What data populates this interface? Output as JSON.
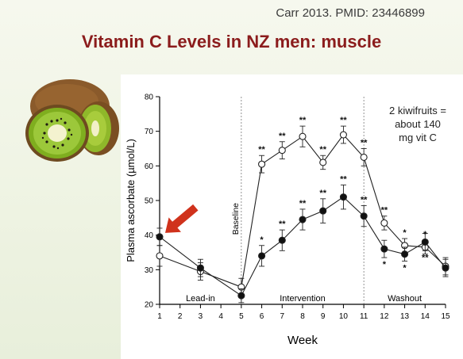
{
  "slide": {
    "citation": "Carr 2013. PMID: 23446899",
    "title": "Vitamin C Levels in NZ men: muscle",
    "annotation_lines": [
      "2 kiwifruits =",
      "about 140",
      "mg vit C"
    ],
    "image_description_icon": "kiwi-fruit-icon",
    "arrow_color": "#d0321c",
    "title_color": "#8b1c1c"
  },
  "chart_data": {
    "type": "line",
    "xlabel": "Week",
    "ylabel": "Plasma ascorbate (µmol/L)",
    "x": [
      1,
      2,
      3,
      4,
      5,
      6,
      7,
      8,
      9,
      10,
      11,
      12,
      13,
      14,
      15
    ],
    "xlim": [
      1,
      15
    ],
    "ylim": [
      20,
      80
    ],
    "yticks": [
      20,
      30,
      40,
      50,
      60,
      70,
      80
    ],
    "grid": false,
    "series": [
      {
        "marker": "open-circle",
        "points": [
          {
            "x": 1,
            "y": 34,
            "err": 3
          },
          {
            "x": 3,
            "y": 29.5,
            "err": 2.5
          },
          {
            "x": 5,
            "y": 25,
            "err": 2.5
          },
          {
            "x": 6,
            "y": 60.5,
            "err": 2.5,
            "sig": "**",
            "sig_pos": "above"
          },
          {
            "x": 7,
            "y": 64.5,
            "err": 2.5,
            "sig": "**",
            "sig_pos": "above"
          },
          {
            "x": 8,
            "y": 68.5,
            "err": 3,
            "sig": "**",
            "sig_pos": "above"
          },
          {
            "x": 9,
            "y": 61,
            "err": 2,
            "sig": "**",
            "sig_pos": "above"
          },
          {
            "x": 10,
            "y": 69,
            "err": 2.5,
            "sig": "**",
            "sig_pos": "above"
          },
          {
            "x": 11,
            "y": 62.5,
            "err": 2.5,
            "sig": "**",
            "sig_pos": "above"
          },
          {
            "x": 12,
            "y": 43.5,
            "err": 2,
            "sig": "**",
            "sig_pos": "above"
          },
          {
            "x": 13,
            "y": 37,
            "err": 2,
            "sig": "*",
            "sig_pos": "above"
          },
          {
            "x": 14,
            "y": 36.5,
            "err": 2,
            "sig": "*",
            "sig_pos": "above"
          },
          {
            "x": 15,
            "y": 31,
            "err": 2.5
          }
        ]
      },
      {
        "marker": "filled-circle",
        "points": [
          {
            "x": 1,
            "y": 39.5,
            "err": 2.5
          },
          {
            "x": 3,
            "y": 30.5,
            "err": 2.5
          },
          {
            "x": 5,
            "y": 22.5,
            "err": 2
          },
          {
            "x": 6,
            "y": 34,
            "err": 3,
            "sig": "*",
            "sig_pos": "above"
          },
          {
            "x": 7,
            "y": 38.5,
            "err": 3,
            "sig": "**",
            "sig_pos": "above"
          },
          {
            "x": 8,
            "y": 44.5,
            "err": 3,
            "sig": "**",
            "sig_pos": "above"
          },
          {
            "x": 9,
            "y": 47,
            "err": 3.5,
            "sig": "**",
            "sig_pos": "above"
          },
          {
            "x": 10,
            "y": 51,
            "err": 3.5,
            "sig": "**",
            "sig_pos": "above"
          },
          {
            "x": 11,
            "y": 45.5,
            "err": 3,
            "sig": "**",
            "sig_pos": "above"
          },
          {
            "x": 12,
            "y": 36,
            "err": 2.5,
            "sig": "*",
            "sig_pos": "below"
          },
          {
            "x": 13,
            "y": 34.5,
            "err": 2,
            "sig": "*",
            "sig_pos": "below"
          },
          {
            "x": 14,
            "y": 38,
            "err": 2.5,
            "sig": "**",
            "sig_pos": "below"
          },
          {
            "x": 15,
            "y": 30.5,
            "err": 2.5
          }
        ]
      }
    ],
    "phase_dividers": [
      {
        "x": 5,
        "label": "Baseline"
      },
      {
        "x": 11,
        "label": ""
      }
    ],
    "phase_labels": [
      {
        "label": "Lead-in",
        "x": 3
      },
      {
        "label": "Intervention",
        "x": 8
      },
      {
        "label": "Washout",
        "x": 13
      }
    ],
    "highlight_arrow": {
      "x": 1,
      "y": 39.5
    }
  }
}
